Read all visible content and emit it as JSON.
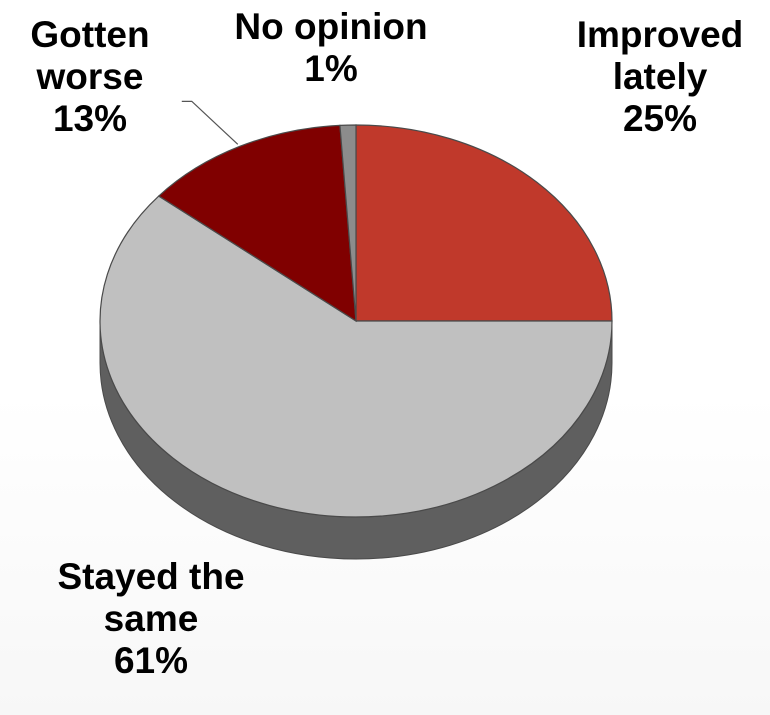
{
  "chart_data": {
    "type": "pie",
    "style": "3d",
    "slices": [
      {
        "label_lines": [
          "Improved",
          "lately"
        ],
        "value": 25,
        "display": "25%",
        "color": "#c0392b"
      },
      {
        "label_lines": [
          "Stayed the",
          "same"
        ],
        "value": 61,
        "display": "61%",
        "color": "#c0c0c0"
      },
      {
        "label_lines": [
          "Gotten",
          "worse"
        ],
        "value": 13,
        "display": "13%",
        "color": "#800000"
      },
      {
        "label_lines": [
          "No opinion"
        ],
        "value": 1,
        "display": "1%",
        "color": "#8c8c8c"
      }
    ],
    "side_color": "#5f5f5f",
    "outline_color": "#4a4a4a",
    "leader_lines": [
      "Gotten worse"
    ]
  }
}
